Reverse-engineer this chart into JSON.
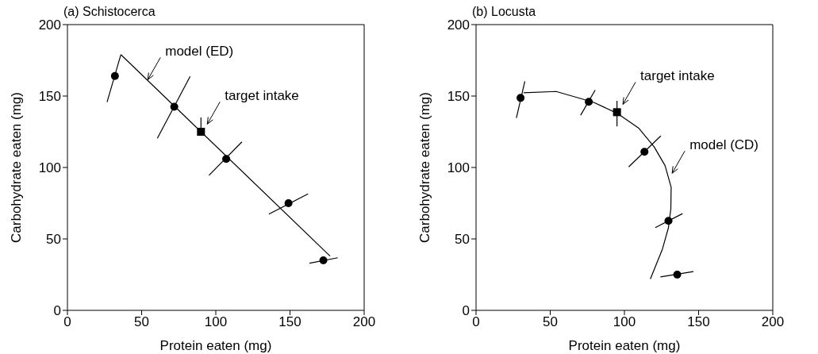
{
  "chart_data": [
    {
      "type": "scatter",
      "title": "(a) Schistocerca",
      "xlabel": "Protein eaten (mg)",
      "ylabel": "Carbohydrate eaten (mg)",
      "xlim": [
        0,
        200
      ],
      "ylim": [
        0,
        200
      ],
      "xticks": [
        0,
        50,
        100,
        150,
        200
      ],
      "yticks": [
        0,
        50,
        100,
        150,
        200
      ],
      "marker": "circle",
      "series": [
        {
          "color": "#000000",
          "x": [
            36,
            177
          ],
          "values": [
            179,
            38
          ],
          "type": "line",
          "marker": "none"
        },
        {
          "color": "#000000",
          "x": [
            26.7,
            36
          ],
          "values": [
            145.8,
            179
          ],
          "type": "line",
          "marker": "none"
        },
        {
          "color": "#000000",
          "x": [
            60.6,
            82.7
          ],
          "values": [
            120.4,
            163.8
          ],
          "type": "line",
          "marker": "none"
        },
        {
          "color": "#000000",
          "x": [
            90,
            90
          ],
          "values": [
            125,
            135
          ],
          "type": "line",
          "marker": "none"
        },
        {
          "color": "#000000",
          "x": [
            95.4,
            117.6
          ],
          "values": [
            94.5,
            117.9
          ],
          "type": "line",
          "marker": "none"
        },
        {
          "color": "#000000",
          "x": [
            135.8,
            162.2
          ],
          "values": [
            67.4,
            81.5
          ],
          "type": "line",
          "marker": "none"
        },
        {
          "color": "#000000",
          "x": [
            163.1,
            182.2
          ],
          "values": [
            33,
            36.8
          ],
          "type": "line",
          "marker": "none"
        },
        {
          "color": "#000000",
          "x": [
            32,
            72,
            107,
            149,
            172.5
          ],
          "values": [
            164,
            142.5,
            106,
            75,
            35
          ]
        },
        {
          "color": "#000000",
          "x": [
            90
          ],
          "values": [
            125
          ],
          "marker": "square"
        }
      ],
      "annotations": [
        {
          "text": "model (ED)",
          "x": 54,
          "y": 161
        },
        {
          "text": "target intake",
          "x": 94,
          "y": 130
        }
      ]
    },
    {
      "type": "scatter",
      "title": "(b) Locusta",
      "xlabel": "Protein eaten (mg)",
      "ylabel": "Carbohydrate eaten (mg)",
      "xlim": [
        0,
        200
      ],
      "ylim": [
        0,
        200
      ],
      "xticks": [
        0,
        50,
        100,
        150,
        200
      ],
      "yticks": [
        0,
        50,
        100,
        150,
        200
      ],
      "marker": "circle",
      "series": [
        {
          "color": "#000000",
          "x": [
            32,
            54,
            79,
            95,
            109.5,
            120,
            127.4,
            131.5,
            131.3,
            129.7,
            125.6,
            117.5
          ],
          "values": [
            152.3,
            153.2,
            145.7,
            138,
            127.7,
            114.5,
            101.3,
            86.2,
            71.1,
            57.9,
            42.8,
            22
          ],
          "type": "line",
          "marker": "none"
        },
        {
          "color": "#000000",
          "x": [
            27.2,
            32.9
          ],
          "values": [
            134.7,
            160.4
          ],
          "type": "line",
          "marker": "none"
        },
        {
          "color": "#000000",
          "x": [
            70.5,
            80.3
          ],
          "values": [
            136.6,
            154.2
          ],
          "type": "line",
          "marker": "none"
        },
        {
          "color": "#000000",
          "x": [
            95,
            95
          ],
          "values": [
            128.7,
            146.6
          ],
          "type": "line",
          "marker": "none"
        },
        {
          "color": "#000000",
          "x": [
            102.9,
            124.5
          ],
          "values": [
            100.4,
            122.1
          ],
          "type": "line",
          "marker": "none"
        },
        {
          "color": "#000000",
          "x": [
            120.8,
            139.2
          ],
          "values": [
            57.9,
            67.7
          ],
          "type": "line",
          "marker": "none"
        },
        {
          "color": "#000000",
          "x": [
            124.3,
            146.5
          ],
          "values": [
            23.4,
            27.2
          ],
          "type": "line",
          "marker": "none"
        },
        {
          "color": "#000000",
          "x": [
            30,
            76,
            113.5,
            129.7,
            135.6
          ],
          "values": [
            148.7,
            146,
            111,
            62.6,
            25
          ]
        },
        {
          "color": "#000000",
          "x": [
            95
          ],
          "values": [
            138.7
          ],
          "marker": "square"
        }
      ],
      "annotations": [
        {
          "text": "target intake",
          "x": 98.7,
          "y": 143.8
        },
        {
          "text": "model (CD)",
          "x": 131.8,
          "y": 95.7
        }
      ]
    }
  ]
}
